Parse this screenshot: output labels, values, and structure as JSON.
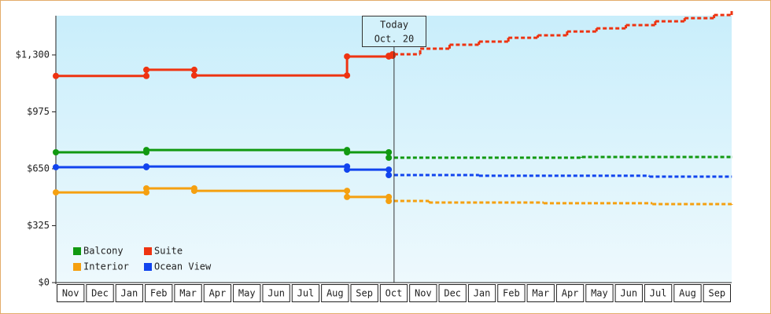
{
  "chart_data": {
    "type": "step-line",
    "categories": [
      "Nov",
      "Dec",
      "Jan",
      "Feb",
      "Mar",
      "Apr",
      "May",
      "Jun",
      "Jul",
      "Aug",
      "Sep",
      "Oct",
      "Nov",
      "Dec",
      "Jan",
      "Feb",
      "Mar",
      "Apr",
      "May",
      "Jun",
      "Jul",
      "Aug",
      "Sep"
    ],
    "xlim": [
      0,
      23
    ],
    "ylim": [
      0,
      1524
    ],
    "yticks": [
      {
        "value": 0,
        "label": "$0"
      },
      {
        "value": 325,
        "label": "$325"
      },
      {
        "value": 650,
        "label": "$650"
      },
      {
        "value": 975,
        "label": "$975"
      },
      {
        "value": 1300,
        "label": "$1,300"
      }
    ],
    "today": {
      "x": 11.51,
      "label": [
        "Today",
        "Oct. 20"
      ]
    },
    "legend": "lower left",
    "series": [
      {
        "name": "Balcony",
        "color": "#119911",
        "x": [
          0,
          3.08,
          9.91,
          11.33
        ],
        "values": [
          744,
          757,
          744,
          713
        ],
        "forecast": {
          "x": [
            11.51,
            17.9,
            23
          ],
          "values": [
            713,
            717,
            717
          ]
        }
      },
      {
        "name": "Suite",
        "color": "#ee3311",
        "x": [
          0,
          3.08,
          4.71,
          9.91,
          11.33,
          11.46
        ],
        "values": [
          1180,
          1215,
          1183,
          1291,
          1295,
          1304
        ],
        "forecast": {
          "x": [
            11.51,
            12.4,
            13.4,
            14.4,
            15.4,
            16.4,
            17.4,
            18.4,
            19.4,
            20.4,
            21.4,
            22.4,
            23
          ],
          "values": [
            1304,
            1336,
            1358,
            1376,
            1398,
            1412,
            1434,
            1452,
            1470,
            1492,
            1510,
            1528,
            1555
          ]
        }
      },
      {
        "name": "Interior",
        "color": "#f5a010",
        "x": [
          0,
          3.08,
          4.71,
          9.91,
          11.33
        ],
        "values": [
          515,
          538,
          524,
          489,
          466
        ],
        "forecast": {
          "x": [
            11.51,
            12.7,
            16.6,
            20.3,
            23
          ],
          "values": [
            466,
            457,
            453,
            448,
            444
          ]
        }
      },
      {
        "name": "Ocean View",
        "color": "#1144ee",
        "x": [
          0,
          3.08,
          9.91,
          11.33
        ],
        "values": [
          659,
          663,
          645,
          614
        ],
        "forecast": {
          "x": [
            11.51,
            14.4,
            20.2,
            23
          ],
          "values": [
            614,
            610,
            605,
            605
          ]
        }
      }
    ]
  }
}
